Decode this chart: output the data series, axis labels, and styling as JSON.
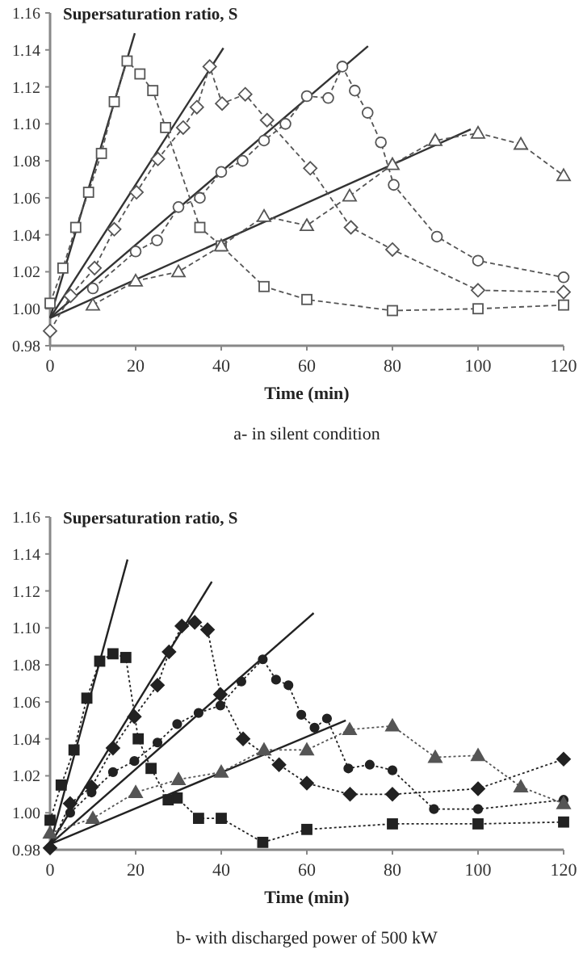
{
  "chart_data": [
    {
      "type": "line",
      "ylabel": "Supersaturation ratio, S",
      "xlabel": "Time (min)",
      "annotations": [
        "a- in silent condition"
      ],
      "xlim": [
        0,
        120
      ],
      "ylim": [
        0.98,
        1.16
      ],
      "xticks": [
        0,
        20,
        40,
        60,
        80,
        100,
        120
      ],
      "yticks": [
        {
          "value": 0.98,
          "label": "0.98"
        },
        {
          "value": 1.0,
          "label": "1.00"
        },
        {
          "value": 1.02,
          "label": "1.02"
        },
        {
          "value": 1.04,
          "label": "1.04"
        },
        {
          "value": 1.06,
          "label": "1.06"
        },
        {
          "value": 1.08,
          "label": "1.08"
        },
        {
          "value": 1.1,
          "label": "1.10"
        },
        {
          "value": 1.12,
          "label": "1.12"
        },
        {
          "value": 1.14,
          "label": "1.14"
        },
        {
          "value": 1.16,
          "label": "1.16"
        }
      ],
      "grid": false,
      "series": [
        {
          "color": "#555555",
          "marker": "square",
          "line_style": "dashed",
          "x": [
            0,
            3,
            6,
            9,
            12,
            15,
            18,
            21,
            24,
            27,
            35,
            40,
            50,
            60,
            80,
            100,
            120
          ],
          "values": [
            1.003,
            1.022,
            1.044,
            1.063,
            1.084,
            1.112,
            1.134,
            1.127,
            1.118,
            1.098,
            1.044,
            1.034,
            1.012,
            1.005,
            0.999,
            1.0,
            1.002
          ]
        },
        {
          "color": "#555555",
          "marker": "diamond",
          "line_style": "dashed",
          "x": [
            0,
            4.8,
            10.4,
            15,
            20.2,
            25.2,
            31.1,
            34.3,
            37.3,
            40.2,
            45.6,
            50.7,
            60.8,
            70.3,
            80,
            100,
            120
          ],
          "values": [
            0.988,
            1.007,
            1.022,
            1.043,
            1.063,
            1.081,
            1.098,
            1.109,
            1.131,
            1.111,
            1.116,
            1.102,
            1.076,
            1.044,
            1.032,
            1.01,
            1.009
          ]
        },
        {
          "color": "#555555",
          "marker": "circle",
          "line_style": "dashed",
          "x": [
            10,
            20,
            25,
            30,
            35,
            40,
            45,
            50,
            55,
            60,
            65,
            68.3,
            71.2,
            74.2,
            77.3,
            80.3,
            90.4,
            100,
            120
          ],
          "values": [
            1.011,
            1.031,
            1.037,
            1.055,
            1.06,
            1.074,
            1.08,
            1.091,
            1.1,
            1.115,
            1.114,
            1.131,
            1.118,
            1.106,
            1.09,
            1.067,
            1.039,
            1.026,
            1.017
          ]
        },
        {
          "color": "#555555",
          "marker": "triangle",
          "line_style": "dashed",
          "x": [
            10,
            20,
            30,
            40,
            50,
            60,
            70,
            80,
            90,
            100,
            110,
            120
          ],
          "values": [
            1.002,
            1.015,
            1.02,
            1.034,
            1.05,
            1.045,
            1.061,
            1.078,
            1.091,
            1.095,
            1.089,
            1.072
          ]
        },
        {
          "color": "#333333",
          "marker": "none",
          "line_style": "solid",
          "x": [
            0,
            19.8
          ],
          "values": [
            0.995,
            1.149
          ]
        },
        {
          "color": "#333333",
          "marker": "none",
          "line_style": "solid",
          "x": [
            0,
            40.5
          ],
          "values": [
            0.995,
            1.141
          ]
        },
        {
          "color": "#333333",
          "marker": "none",
          "line_style": "solid",
          "x": [
            0,
            74.3
          ],
          "values": [
            0.995,
            1.142
          ]
        },
        {
          "color": "#333333",
          "marker": "none",
          "line_style": "solid",
          "x": [
            0,
            98.3
          ],
          "values": [
            0.995,
            1.097
          ]
        }
      ]
    },
    {
      "type": "line",
      "ylabel": "Supersaturation ratio, S",
      "xlabel": "Time (min)",
      "annotations": [
        "b- with discharged power of 500 kW"
      ],
      "xlim": [
        0,
        120
      ],
      "ylim": [
        0.98,
        1.16
      ],
      "xticks": [
        0,
        20,
        40,
        60,
        80,
        100,
        120
      ],
      "yticks": [
        {
          "value": 0.98,
          "label": "0.98"
        },
        {
          "value": 1.0,
          "label": "1.00"
        },
        {
          "value": 1.02,
          "label": "1.02"
        },
        {
          "value": 1.04,
          "label": "1.04"
        },
        {
          "value": 1.06,
          "label": "1.06"
        },
        {
          "value": 1.08,
          "label": "1.08"
        },
        {
          "value": 1.1,
          "label": "1.10"
        },
        {
          "value": 1.12,
          "label": "1.12"
        },
        {
          "value": 1.14,
          "label": "1.14"
        },
        {
          "value": 1.16,
          "label": "1.16"
        }
      ],
      "grid": false,
      "series": [
        {
          "color": "#222222",
          "marker": "square",
          "line_style": "dotted",
          "x": [
            0,
            2.6,
            5.6,
            8.6,
            11.6,
            14.7,
            17.7,
            20.6,
            23.6,
            27.6,
            29.7,
            34.7,
            40,
            49.7,
            60,
            80,
            100,
            120
          ],
          "values": [
            0.996,
            1.015,
            1.034,
            1.062,
            1.082,
            1.086,
            1.084,
            1.04,
            1.024,
            1.007,
            1.008,
            0.997,
            0.997,
            0.984,
            0.991,
            0.994,
            0.994,
            0.995
          ]
        },
        {
          "color": "#222222",
          "marker": "diamond",
          "line_style": "dotted",
          "x": [
            0,
            4.7,
            9.7,
            14.7,
            19.7,
            25.1,
            27.8,
            30.8,
            33.8,
            36.8,
            39.8,
            45.1,
            53.5,
            60,
            70.1,
            80,
            100,
            120
          ],
          "values": [
            0.981,
            1.005,
            1.014,
            1.035,
            1.052,
            1.069,
            1.087,
            1.101,
            1.103,
            1.099,
            1.064,
            1.04,
            1.026,
            1.016,
            1.01,
            1.01,
            1.013,
            1.029
          ]
        },
        {
          "color": "#222222",
          "marker": "circle",
          "line_style": "dotted",
          "x": [
            4.7,
            9.7,
            14.7,
            19.7,
            25.1,
            29.7,
            34.7,
            39.8,
            44.7,
            49.7,
            52.8,
            55.7,
            58.7,
            61.8,
            64.7,
            69.7,
            74.7,
            80,
            89.7,
            100,
            120
          ],
          "values": [
            1.0,
            1.011,
            1.022,
            1.028,
            1.038,
            1.048,
            1.054,
            1.058,
            1.071,
            1.083,
            1.072,
            1.069,
            1.053,
            1.046,
            1.051,
            1.024,
            1.026,
            1.023,
            1.002,
            1.002,
            1.007
          ]
        },
        {
          "color": "#555555",
          "marker": "triangle",
          "line_style": "dotted",
          "x": [
            0,
            10,
            20,
            30,
            40,
            50,
            60,
            70,
            80,
            90,
            100,
            110,
            120
          ],
          "values": [
            0.989,
            0.997,
            1.011,
            1.018,
            1.022,
            1.034,
            1.034,
            1.045,
            1.047,
            1.03,
            1.031,
            1.014,
            1.005
          ]
        },
        {
          "color": "#222222",
          "marker": "none",
          "line_style": "solid",
          "x": [
            0,
            18.1
          ],
          "values": [
            0.983,
            1.137
          ]
        },
        {
          "color": "#222222",
          "marker": "none",
          "line_style": "solid",
          "x": [
            0,
            37.8
          ],
          "values": [
            0.983,
            1.125
          ]
        },
        {
          "color": "#222222",
          "marker": "none",
          "line_style": "solid",
          "x": [
            0,
            61.6
          ],
          "values": [
            0.983,
            1.108
          ]
        },
        {
          "color": "#222222",
          "marker": "none",
          "line_style": "solid",
          "x": [
            0,
            69.1
          ],
          "values": [
            0.983,
            1.05
          ]
        }
      ]
    }
  ]
}
